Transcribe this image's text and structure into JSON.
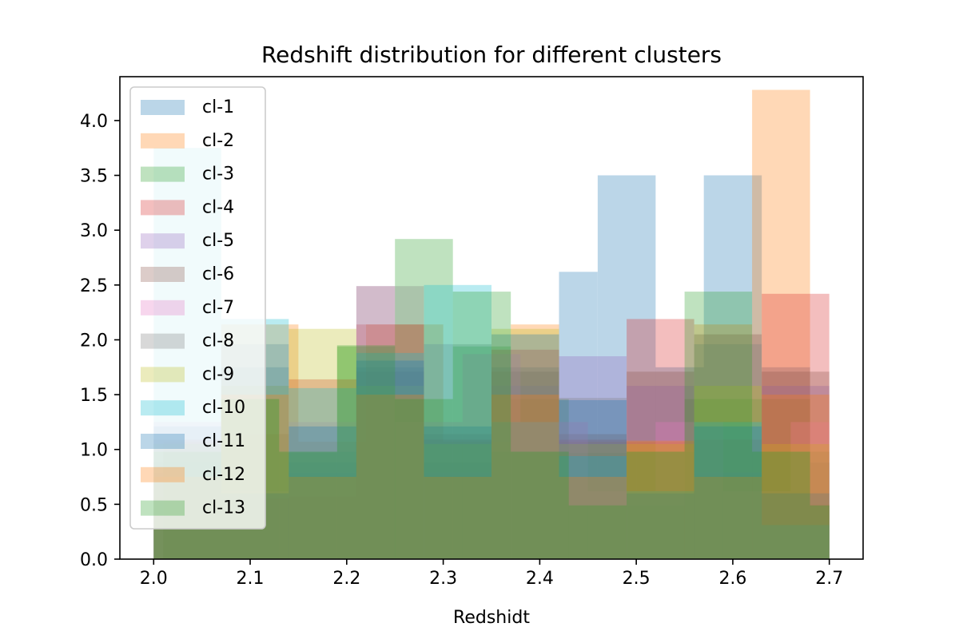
{
  "chart_data": {
    "type": "bar",
    "subtype": "overlapping-histogram",
    "title": "Redshift distribution for different clusters",
    "xlabel": "Redshidt",
    "ylabel": "",
    "xlim": [
      1.965,
      2.735
    ],
    "ylim": [
      0,
      4.4
    ],
    "xticks": [
      "2.0",
      "2.1",
      "2.2",
      "2.3",
      "2.4",
      "2.5",
      "2.6",
      "2.7"
    ],
    "yticks": [
      "0.0",
      "0.5",
      "1.0",
      "1.5",
      "2.0",
      "2.5",
      "3.0",
      "3.5",
      "4.0"
    ],
    "grid": false,
    "legend_position": "upper-left",
    "bar_opacity": 0.3,
    "series": [
      {
        "name": "cl-1",
        "color": "#1f77b4",
        "bins": [
          [
            2.0,
            2.07,
            0.88
          ],
          [
            2.07,
            2.14,
            1.75
          ],
          [
            2.14,
            2.21,
            0.88
          ],
          [
            2.21,
            2.28,
            1.75
          ],
          [
            2.28,
            2.35,
            0.88
          ],
          [
            2.35,
            2.42,
            1.75
          ],
          [
            2.42,
            2.46,
            2.62
          ],
          [
            2.46,
            2.52,
            3.5
          ],
          [
            2.52,
            2.57,
            1.75
          ],
          [
            2.57,
            2.63,
            3.5
          ],
          [
            2.63,
            2.68,
            1.75
          ],
          [
            2.68,
            2.7,
            0.88
          ]
        ]
      },
      {
        "name": "cl-2",
        "color": "#ff7f0e",
        "bins": [
          [
            2.01,
            2.07,
            1.07
          ],
          [
            2.07,
            2.15,
            2.14
          ],
          [
            2.15,
            2.22,
            1.07
          ],
          [
            2.22,
            2.3,
            2.14
          ],
          [
            2.3,
            2.37,
            1.07
          ],
          [
            2.37,
            2.42,
            2.14
          ],
          [
            2.42,
            2.5,
            1.07
          ],
          [
            2.5,
            2.56,
            1.07
          ],
          [
            2.56,
            2.62,
            2.14
          ],
          [
            2.62,
            2.68,
            4.28
          ],
          [
            2.68,
            2.7,
            0.5
          ]
        ]
      },
      {
        "name": "cl-3",
        "color": "#2ca02c",
        "bins": [
          [
            2.01,
            2.07,
            0.97
          ],
          [
            2.07,
            2.13,
            1.46
          ],
          [
            2.13,
            2.19,
            0.97
          ],
          [
            2.19,
            2.25,
            1.94
          ],
          [
            2.25,
            2.31,
            2.92
          ],
          [
            2.31,
            2.37,
            1.94
          ],
          [
            2.37,
            2.43,
            1.46
          ],
          [
            2.43,
            2.49,
            0.97
          ],
          [
            2.49,
            2.55,
            0.49
          ],
          [
            2.55,
            2.62,
            1.46
          ],
          [
            2.62,
            2.68,
            1.46
          ],
          [
            2.68,
            2.7,
            0.49
          ]
        ]
      },
      {
        "name": "cl-4",
        "color": "#d62728",
        "bins": [
          [
            2.0,
            2.07,
            1.09
          ],
          [
            2.07,
            2.14,
            0.55
          ],
          [
            2.14,
            2.21,
            1.64
          ],
          [
            2.21,
            2.28,
            2.14
          ],
          [
            2.28,
            2.35,
            1.09
          ],
          [
            2.35,
            2.42,
            1.91
          ],
          [
            2.42,
            2.49,
            1.09
          ],
          [
            2.49,
            2.56,
            2.19
          ],
          [
            2.56,
            2.63,
            1.09
          ],
          [
            2.63,
            2.7,
            2.42
          ]
        ]
      },
      {
        "name": "cl-5",
        "color": "#9467bd",
        "bins": [
          [
            2.0,
            2.07,
            0.79
          ],
          [
            2.07,
            2.14,
            1.58
          ],
          [
            2.14,
            2.21,
            0.79
          ],
          [
            2.21,
            2.28,
            1.58
          ],
          [
            2.28,
            2.35,
            0.79
          ],
          [
            2.35,
            2.42,
            1.58
          ],
          [
            2.42,
            2.49,
            1.85
          ],
          [
            2.49,
            2.56,
            1.58
          ],
          [
            2.56,
            2.63,
            0.79
          ],
          [
            2.63,
            2.7,
            1.58
          ]
        ]
      },
      {
        "name": "cl-6",
        "color": "#8c564b",
        "bins": [
          [
            2.0,
            2.07,
            0.57
          ],
          [
            2.07,
            2.14,
            1.14
          ],
          [
            2.14,
            2.21,
            0.57
          ],
          [
            2.21,
            2.28,
            1.71
          ],
          [
            2.28,
            2.35,
            1.14
          ],
          [
            2.35,
            2.42,
            1.71
          ],
          [
            2.42,
            2.49,
            1.14
          ],
          [
            2.49,
            2.56,
            1.71
          ],
          [
            2.56,
            2.63,
            2.05
          ],
          [
            2.63,
            2.7,
            1.71
          ]
        ]
      },
      {
        "name": "cl-7",
        "color": "#e377c2",
        "bins": [
          [
            2.0,
            2.07,
            1.25
          ],
          [
            2.07,
            2.14,
            0.62
          ],
          [
            2.14,
            2.21,
            1.25
          ],
          [
            2.21,
            2.25,
            2.49
          ],
          [
            2.25,
            2.32,
            1.25
          ],
          [
            2.32,
            2.38,
            1.87
          ],
          [
            2.38,
            2.45,
            1.25
          ],
          [
            2.45,
            2.52,
            0.62
          ],
          [
            2.52,
            2.59,
            1.25
          ],
          [
            2.59,
            2.66,
            0.62
          ],
          [
            2.66,
            2.7,
            1.25
          ]
        ]
      },
      {
        "name": "cl-8",
        "color": "#7f7f7f",
        "bins": [
          [
            2.01,
            2.07,
            0.98
          ],
          [
            2.07,
            2.14,
            1.96
          ],
          [
            2.14,
            2.21,
            0.98
          ],
          [
            2.21,
            2.28,
            2.49
          ],
          [
            2.28,
            2.35,
            1.96
          ],
          [
            2.35,
            2.42,
            0.98
          ],
          [
            2.42,
            2.49,
            1.47
          ],
          [
            2.49,
            2.56,
            0.98
          ],
          [
            2.56,
            2.63,
            1.96
          ],
          [
            2.63,
            2.7,
            0.98
          ]
        ]
      },
      {
        "name": "cl-9",
        "color": "#bcbd22",
        "bins": [
          [
            2.0,
            2.07,
            1.05
          ],
          [
            2.07,
            2.14,
            1.58
          ],
          [
            2.14,
            2.21,
            2.1
          ],
          [
            2.21,
            2.28,
            1.58
          ],
          [
            2.28,
            2.35,
            1.05
          ],
          [
            2.35,
            2.42,
            2.1
          ],
          [
            2.42,
            2.49,
            1.05
          ],
          [
            2.49,
            2.56,
            1.05
          ],
          [
            2.56,
            2.63,
            1.58
          ],
          [
            2.63,
            2.7,
            1.05
          ]
        ]
      },
      {
        "name": "cl-10",
        "color": "#17becf",
        "bins": [
          [
            2.0,
            2.07,
            3.75
          ],
          [
            2.07,
            2.14,
            2.19
          ],
          [
            2.14,
            2.21,
            1.56
          ],
          [
            2.21,
            2.28,
            1.88
          ],
          [
            2.28,
            2.35,
            2.5
          ],
          [
            2.35,
            2.42,
            1.25
          ],
          [
            2.42,
            2.49,
            0.94
          ],
          [
            2.49,
            2.56,
            0.62
          ],
          [
            2.56,
            2.63,
            1.25
          ],
          [
            2.63,
            2.7,
            0.31
          ]
        ]
      },
      {
        "name": "cl-11",
        "color": "#1f77b4",
        "bins": [
          [
            2.0,
            2.07,
            1.21
          ],
          [
            2.07,
            2.14,
            0.6
          ],
          [
            2.14,
            2.21,
            1.21
          ],
          [
            2.21,
            2.28,
            1.81
          ],
          [
            2.28,
            2.35,
            1.21
          ],
          [
            2.35,
            2.42,
            2.05
          ],
          [
            2.42,
            2.49,
            1.45
          ],
          [
            2.49,
            2.56,
            0.6
          ],
          [
            2.56,
            2.63,
            1.21
          ],
          [
            2.63,
            2.7,
            0.6
          ]
        ]
      },
      {
        "name": "cl-12",
        "color": "#ff7f0e",
        "bins": [
          [
            2.0,
            2.07,
            0.75
          ],
          [
            2.07,
            2.14,
            1.5
          ],
          [
            2.14,
            2.21,
            0.75
          ],
          [
            2.21,
            2.28,
            1.5
          ],
          [
            2.28,
            2.35,
            0.75
          ],
          [
            2.35,
            2.42,
            1.5
          ],
          [
            2.42,
            2.49,
            0.75
          ],
          [
            2.49,
            2.56,
            1.08
          ],
          [
            2.56,
            2.63,
            0.75
          ],
          [
            2.63,
            2.7,
            1.5
          ]
        ]
      },
      {
        "name": "cl-13",
        "color": "#2ca02c",
        "bins": [
          [
            2.0,
            2.07,
            0.98
          ],
          [
            2.07,
            2.13,
            1.46
          ],
          [
            2.13,
            2.19,
            0.98
          ],
          [
            2.19,
            2.25,
            1.95
          ],
          [
            2.25,
            2.31,
            1.46
          ],
          [
            2.31,
            2.37,
            2.44
          ],
          [
            2.37,
            2.43,
            0.98
          ],
          [
            2.43,
            2.49,
            0.49
          ],
          [
            2.49,
            2.55,
            0.98
          ],
          [
            2.55,
            2.62,
            2.44
          ],
          [
            2.62,
            2.68,
            0.98
          ],
          [
            2.68,
            2.7,
            0.49
          ]
        ]
      }
    ]
  }
}
